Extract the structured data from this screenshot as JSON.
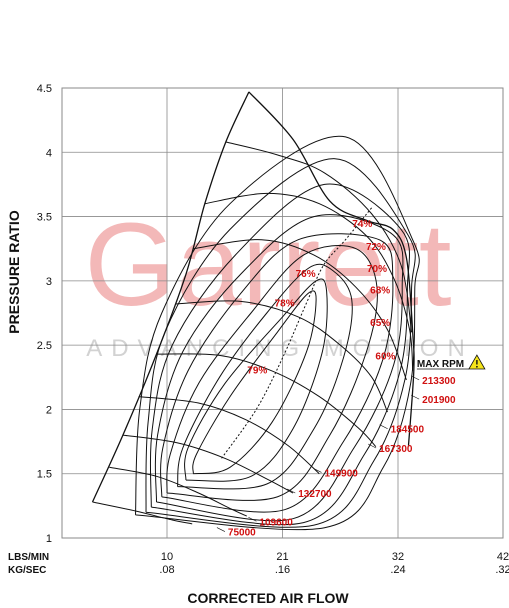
{
  "colors": {
    "line": "#111111",
    "label": "#d01010",
    "grid": "#8a8a8a",
    "watermark": "#f3b8b8",
    "watermark_sub": "#d2d2d2",
    "warning": "#f5e51a"
  },
  "watermark": {
    "brand": "Garrett",
    "tagline": "ADVANCING MOTION"
  },
  "chart_data": {
    "type": "line",
    "title": "",
    "xlabel": "CORRECTED AIR FLOW",
    "ylabel": "PRESSURE RATIO",
    "x_unit_primary": "LBS/MIN",
    "x_unit_secondary": "KG/SEC",
    "xlim": [
      0,
      42
    ],
    "ylim": [
      1,
      4.5
    ],
    "xticks": [
      {
        "lbs": 10,
        "kg": ".08"
      },
      {
        "lbs": 21,
        "kg": ".16"
      },
      {
        "lbs": 32,
        "kg": ".24"
      },
      {
        "lbs": 42,
        "kg": ".32"
      }
    ],
    "yticks": [
      1,
      1.5,
      2,
      2.5,
      3,
      3.5,
      4,
      4.5
    ],
    "grid": true,
    "surge_line": [
      [
        2.9,
        1.28
      ],
      [
        5.8,
        1.8
      ],
      [
        9,
        2.43
      ],
      [
        11.8,
        3.05
      ],
      [
        13.6,
        3.6
      ],
      [
        15.6,
        4.08
      ],
      [
        17.8,
        4.47
      ]
    ],
    "speed_lines": [
      {
        "rpm": "75000",
        "label_at": [
          15.8,
          1.05
        ],
        "points": [
          [
            2.9,
            1.28
          ],
          [
            7,
            1.21
          ],
          [
            10.5,
            1.14
          ],
          [
            12.4,
            1.11
          ]
        ]
      },
      {
        "rpm": "109600",
        "label_at": [
          18.8,
          1.13
        ],
        "points": [
          [
            4.5,
            1.55
          ],
          [
            9,
            1.48
          ],
          [
            13,
            1.35
          ],
          [
            16,
            1.23
          ],
          [
            17.6,
            1.17
          ]
        ]
      },
      {
        "rpm": "132700",
        "label_at": [
          22.5,
          1.35
        ],
        "points": [
          [
            5.8,
            1.8
          ],
          [
            11,
            1.74
          ],
          [
            15.5,
            1.62
          ],
          [
            19.5,
            1.46
          ],
          [
            22,
            1.35
          ]
        ]
      },
      {
        "rpm": "149900",
        "label_at": [
          25,
          1.51
        ],
        "points": [
          [
            7.3,
            2.1
          ],
          [
            13,
            2.05
          ],
          [
            17.5,
            1.92
          ],
          [
            21.5,
            1.72
          ],
          [
            24.5,
            1.5
          ]
        ]
      },
      {
        "rpm": "167300",
        "label_at": [
          30.2,
          1.7
        ],
        "points": [
          [
            9,
            2.43
          ],
          [
            15,
            2.42
          ],
          [
            20,
            2.3
          ],
          [
            24.5,
            2.1
          ],
          [
            28.3,
            1.85
          ],
          [
            29.9,
            1.71
          ]
        ]
      },
      {
        "rpm": "184500",
        "label_at": [
          31.3,
          1.85
        ],
        "points": [
          [
            10.8,
            2.82
          ],
          [
            17,
            2.84
          ],
          [
            22.5,
            2.72
          ],
          [
            26.5,
            2.5
          ],
          [
            29.5,
            2.25
          ],
          [
            31,
            1.98
          ]
        ]
      },
      {
        "rpm": "201900",
        "label_at": [
          34.3,
          2.08
        ],
        "points": [
          [
            12.5,
            3.25
          ],
          [
            19,
            3.32
          ],
          [
            24,
            3.2
          ],
          [
            28,
            2.95
          ],
          [
            31,
            2.62
          ],
          [
            32.8,
            2.23
          ]
        ]
      },
      {
        "rpm": "213300",
        "label_at": [
          34.3,
          2.23
        ],
        "points": [
          [
            13.6,
            3.6
          ],
          [
            19.5,
            3.68
          ],
          [
            24.5,
            3.6
          ],
          [
            29,
            3.35
          ],
          [
            31.6,
            3.02
          ],
          [
            33.1,
            2.62
          ],
          [
            33.4,
            2.3
          ]
        ]
      },
      {
        "rpm": "",
        "label_at": null,
        "points": [
          [
            15.6,
            4.08
          ],
          [
            20.5,
            3.98
          ],
          [
            25,
            3.84
          ],
          [
            29.5,
            3.52
          ],
          [
            32.3,
            3.12
          ],
          [
            33.3,
            2.6
          ]
        ]
      }
    ],
    "choke_line": [
      [
        17.8,
        4.47
      ],
      [
        22,
        4.1
      ],
      [
        25.5,
        3.62
      ],
      [
        29,
        3.47
      ],
      [
        31.5,
        3.4
      ],
      [
        32.8,
        3.18
      ],
      [
        33.4,
        2.6
      ],
      [
        33.5,
        2.3
      ],
      [
        33,
        1.72
      ]
    ],
    "efficiency_islands": [
      {
        "label": "79%",
        "label_at": [
          18.6,
          2.28
        ],
        "points": [
          [
            12.5,
            1.5
          ],
          [
            16,
            1.55
          ],
          [
            20,
            1.9
          ],
          [
            23.3,
            2.45
          ],
          [
            24.2,
            2.85
          ],
          [
            23.4,
            2.9
          ],
          [
            20.5,
            2.6
          ],
          [
            16,
            2.1
          ],
          [
            12.8,
            1.65
          ],
          [
            12.5,
            1.5
          ]
        ]
      },
      {
        "label": "78%",
        "label_at": [
          21.2,
          2.8
        ],
        "points": [
          [
            11.8,
            1.45
          ],
          [
            18,
            1.48
          ],
          [
            22,
            1.85
          ],
          [
            24.8,
            2.45
          ],
          [
            25.2,
            2.92
          ],
          [
            24.2,
            3.0
          ],
          [
            21,
            2.72
          ],
          [
            15.5,
            2.2
          ],
          [
            12,
            1.7
          ],
          [
            11.8,
            1.45
          ]
        ]
      },
      {
        "label": "76%",
        "label_at": [
          23.2,
          3.03
        ],
        "points": [
          [
            11,
            1.4
          ],
          [
            19.5,
            1.42
          ],
          [
            24,
            1.85
          ],
          [
            26.8,
            2.4
          ],
          [
            27.6,
            2.85
          ],
          [
            25.8,
            3.08
          ],
          [
            23.5,
            3.1
          ],
          [
            19.5,
            2.75
          ],
          [
            15,
            2.25
          ],
          [
            11.5,
            1.7
          ],
          [
            11,
            1.4
          ]
        ]
      },
      {
        "label": "74%",
        "label_at": [
          28.6,
          3.42
        ],
        "points": [
          [
            10,
            1.35
          ],
          [
            20.5,
            1.32
          ],
          [
            25.5,
            1.8
          ],
          [
            29,
            2.45
          ],
          [
            30,
            2.95
          ],
          [
            28,
            3.25
          ],
          [
            23,
            3.2
          ],
          [
            18,
            2.75
          ],
          [
            13,
            2.2
          ],
          [
            10.3,
            1.65
          ],
          [
            10,
            1.35
          ]
        ]
      },
      {
        "label": "72%",
        "label_at": [
          29.9,
          3.24
        ],
        "points": [
          [
            9.5,
            1.32
          ],
          [
            21.2,
            1.22
          ],
          [
            26.8,
            1.75
          ],
          [
            30.6,
            2.4
          ],
          [
            31.5,
            3.0
          ],
          [
            30.2,
            3.32
          ],
          [
            22.5,
            3.32
          ],
          [
            17,
            2.9
          ],
          [
            12,
            2.3
          ],
          [
            9.6,
            1.7
          ],
          [
            9.5,
            1.32
          ]
        ]
      },
      {
        "label": "70%",
        "label_at": [
          30.0,
          3.07
        ],
        "points": [
          [
            9,
            1.28
          ],
          [
            22,
            1.15
          ],
          [
            27.8,
            1.7
          ],
          [
            31.6,
            2.35
          ],
          [
            32.4,
            2.95
          ],
          [
            31.5,
            3.36
          ],
          [
            24,
            3.5
          ],
          [
            17,
            3.05
          ],
          [
            11.5,
            2.45
          ],
          [
            9.1,
            1.8
          ],
          [
            9,
            1.28
          ]
        ]
      },
      {
        "label": "68%",
        "label_at": [
          30.3,
          2.9
        ],
        "points": [
          [
            8.5,
            1.24
          ],
          [
            23,
            1.12
          ],
          [
            28.8,
            1.65
          ],
          [
            32.2,
            2.3
          ],
          [
            32.9,
            2.95
          ],
          [
            32.3,
            3.4
          ],
          [
            25,
            3.75
          ],
          [
            16.5,
            3.2
          ],
          [
            10.5,
            2.5
          ],
          [
            8.6,
            1.85
          ],
          [
            8.5,
            1.24
          ]
        ]
      },
      {
        "label": "65%",
        "label_at": [
          30.3,
          2.65
        ],
        "points": [
          [
            8,
            1.2
          ],
          [
            24,
            1.1
          ],
          [
            29.7,
            1.6
          ],
          [
            32.7,
            2.25
          ],
          [
            33.3,
            2.95
          ],
          [
            33,
            3.35
          ],
          [
            26,
            3.95
          ],
          [
            16,
            3.4
          ],
          [
            9.8,
            2.6
          ],
          [
            8.2,
            1.9
          ],
          [
            8,
            1.2
          ]
        ]
      },
      {
        "label": "60%",
        "label_at": [
          30.8,
          2.39
        ],
        "points": [
          [
            7,
            1.18
          ],
          [
            25,
            1.08
          ],
          [
            30.6,
            1.55
          ],
          [
            33.2,
            2.2
          ],
          [
            33.6,
            2.95
          ],
          [
            33.5,
            3.3
          ],
          [
            27,
            4.12
          ],
          [
            16,
            3.6
          ],
          [
            9.5,
            2.75
          ],
          [
            7.4,
            2.0
          ],
          [
            7,
            1.18
          ]
        ]
      }
    ],
    "peak_efficiency_line": [
      [
        15.2,
        1.62
      ],
      [
        18.5,
        2.0
      ],
      [
        21,
        2.4
      ],
      [
        23.3,
        2.83
      ],
      [
        24.9,
        3.12
      ],
      [
        27,
        3.32
      ],
      [
        29.6,
        3.58
      ]
    ],
    "annotations": [
      {
        "text": "MAX RPM",
        "at": [
          33.8,
          2.33
        ],
        "warning_icon": true
      }
    ]
  }
}
